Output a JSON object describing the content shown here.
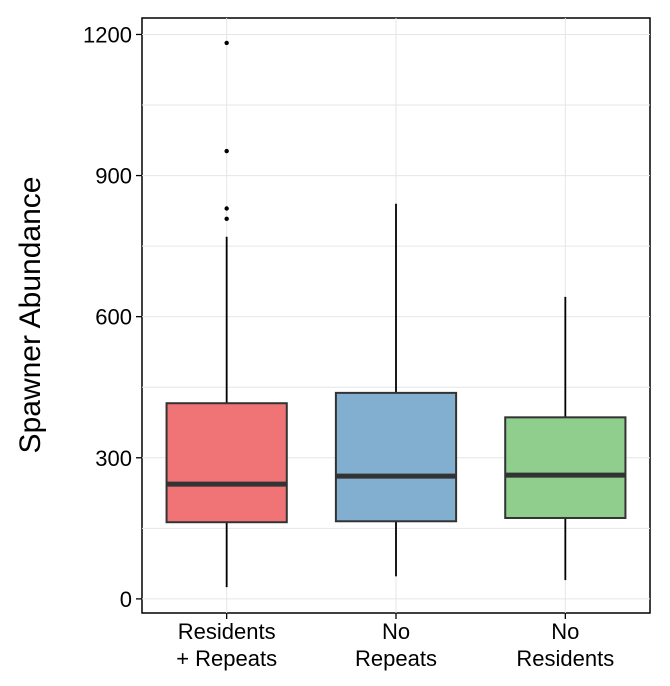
{
  "chart_data": {
    "type": "box",
    "ylabel": "Spawner Abundance",
    "ylim": [
      -30,
      1235
    ],
    "yticks": [
      0,
      300,
      600,
      900,
      1200
    ],
    "grid": true,
    "categories": [
      {
        "lines": [
          "Residents",
          "+ Repeats"
        ]
      },
      {
        "lines": [
          "No",
          "Repeats"
        ]
      },
      {
        "lines": [
          "No",
          "Residents"
        ]
      }
    ],
    "boxes": [
      {
        "name": "Residents + Repeats",
        "color": "#F07476",
        "whisker_low": 25,
        "q1": 163,
        "median": 244,
        "q3": 416,
        "whisker_high": 770,
        "outliers": [
          808,
          830,
          952,
          1182
        ]
      },
      {
        "name": "No Repeats",
        "color": "#82AECF",
        "whisker_low": 48,
        "q1": 165,
        "median": 261,
        "q3": 438,
        "whisker_high": 840,
        "outliers": []
      },
      {
        "name": "No Residents",
        "color": "#8FCE8D",
        "whisker_low": 40,
        "q1": 172,
        "median": 263,
        "q3": 386,
        "whisker_high": 642,
        "outliers": []
      }
    ]
  }
}
